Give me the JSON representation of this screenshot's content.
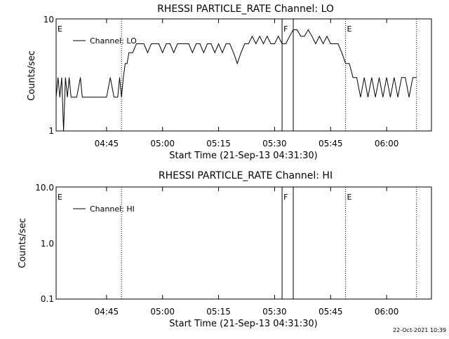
{
  "footer": {
    "timestamp": "22-Oct-2021 10:39"
  },
  "chart_data": [
    {
      "type": "line",
      "title": "RHESSI PARTICLE_RATE Channel: LO",
      "xlabel": "Start Time (21-Sep-13 04:31:30)",
      "ylabel": "Counts/sec",
      "yscale": "log",
      "ylim": [
        1,
        10
      ],
      "xlim": [
        "04:31:30",
        "06:12:00"
      ],
      "y_tick_labels": [
        "1",
        "10"
      ],
      "x_tick_labels": [
        "04:45",
        "05:00",
        "05:15",
        "05:30",
        "05:45",
        "06:00"
      ],
      "legend": {
        "position": "top-left"
      },
      "series": [
        {
          "name": "Channel: LO",
          "color": "#000000",
          "x": [
            "04:31:30",
            "04:32:00",
            "04:32:30",
            "04:33:00",
            "04:33:30",
            "04:34:00",
            "04:34:30",
            "04:35:00",
            "04:35:30",
            "04:36:00",
            "04:37:00",
            "04:38:00",
            "04:38:30",
            "04:39:00",
            "04:40:00",
            "04:41:00",
            "04:42:00",
            "04:43:00",
            "04:44:00",
            "04:45:00",
            "04:46:00",
            "04:47:00",
            "04:47:30",
            "04:48:00",
            "04:48:30",
            "04:49:00",
            "04:49:30",
            "04:50:00",
            "04:50:30",
            "04:51:00",
            "04:52:00",
            "04:53:00",
            "04:54:00",
            "04:55:00",
            "04:56:00",
            "04:57:00",
            "04:58:00",
            "04:59:00",
            "05:00:00",
            "05:01:00",
            "05:02:00",
            "05:03:00",
            "05:04:00",
            "05:05:00",
            "05:06:00",
            "05:07:00",
            "05:08:00",
            "05:09:00",
            "05:10:00",
            "05:11:00",
            "05:12:00",
            "05:13:00",
            "05:14:00",
            "05:15:00",
            "05:16:00",
            "05:17:00",
            "05:18:00",
            "05:19:00",
            "05:20:00",
            "05:21:00",
            "05:22:00",
            "05:23:00",
            "05:24:00",
            "05:25:00",
            "05:26:00",
            "05:27:00",
            "05:28:00",
            "05:29:00",
            "05:30:00",
            "05:31:00",
            "05:32:00",
            "05:33:00",
            "05:34:00",
            "05:35:00",
            "05:36:00",
            "05:37:00",
            "05:38:00",
            "05:39:00",
            "05:40:00",
            "05:41:00",
            "05:42:00",
            "05:43:00",
            "05:44:00",
            "05:45:00",
            "05:46:00",
            "05:47:00",
            "05:48:00",
            "05:49:00",
            "05:50:00",
            "05:51:00",
            "05:52:00",
            "05:53:00",
            "05:54:00",
            "05:55:00",
            "05:56:00",
            "05:57:00",
            "05:58:00",
            "05:59:00",
            "06:00:00",
            "06:01:00",
            "06:02:00",
            "06:03:00",
            "06:04:00",
            "06:05:00",
            "06:06:00",
            "06:07:00",
            "06:08:00"
          ],
          "values": [
            2,
            3,
            2,
            3,
            1,
            3,
            2,
            3,
            2,
            2,
            2,
            3,
            2,
            2,
            2,
            2,
            2,
            2,
            2,
            2,
            3,
            2,
            2,
            2,
            3,
            2,
            3,
            4,
            4,
            5,
            5,
            6,
            6,
            6,
            5,
            6,
            6,
            6,
            5,
            6,
            6,
            5,
            6,
            6,
            6,
            6,
            5,
            6,
            6,
            5,
            6,
            6,
            5,
            6,
            5,
            6,
            6,
            5,
            4,
            5,
            6,
            6,
            7,
            6,
            7,
            6,
            7,
            6,
            6,
            7,
            6,
            6,
            7,
            8,
            8,
            7,
            7,
            8,
            7,
            6,
            7,
            6,
            7,
            6,
            6,
            6,
            5,
            4,
            4,
            3,
            3,
            2,
            3,
            2,
            3,
            2,
            3,
            2,
            3,
            2,
            3,
            2,
            3,
            3,
            2,
            3,
            3
          ]
        }
      ],
      "annotations": [
        "E",
        "F",
        "E"
      ]
    },
    {
      "type": "line",
      "title": "RHESSI PARTICLE_RATE Channel: HI",
      "xlabel": "Start Time (21-Sep-13 04:31:30)",
      "ylabel": "Counts/sec",
      "yscale": "log",
      "ylim": [
        0.1,
        10
      ],
      "xlim": [
        "04:31:30",
        "06:12:00"
      ],
      "y_tick_labels": [
        "0.1",
        "1.0",
        "10.0"
      ],
      "x_tick_labels": [
        "04:45",
        "05:00",
        "05:15",
        "05:30",
        "05:45",
        "06:00"
      ],
      "legend": {
        "position": "top-left"
      },
      "series": [
        {
          "name": "Channel: HI",
          "color": "#000000",
          "x": [],
          "values": []
        }
      ],
      "annotations": [
        "E",
        "F",
        "E"
      ]
    }
  ]
}
